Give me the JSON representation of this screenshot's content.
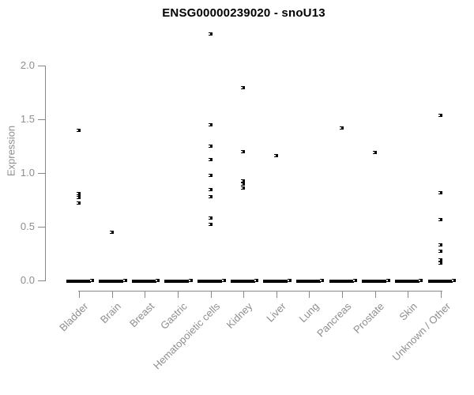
{
  "chart_data": {
    "type": "scatter",
    "title": "ENSG00000239020 - snoU13",
    "ylabel": "Expression",
    "xlabel": "",
    "ylim": [
      0,
      2.35
    ],
    "yticks": [
      "0.0",
      "0.5",
      "1.0",
      "1.5",
      "2.0"
    ],
    "ytick_values": [
      0.0,
      0.5,
      1.0,
      1.5,
      2.0
    ],
    "grid": false,
    "legend_position": "none",
    "marker_style": "small-black-open-square",
    "categories": [
      "Bladder",
      "Brain",
      "Breast",
      "Gastric",
      "Hematopoietic cells",
      "Kidney",
      "Liver",
      "Lung",
      "Pancreas",
      "Prostate",
      "Skin",
      "Unknown / Other"
    ],
    "series": [
      {
        "name": "Bladder",
        "values": [
          1.4,
          0.81,
          0.79,
          0.77,
          0.72
        ],
        "zero_cluster": true
      },
      {
        "name": "Brain",
        "values": [
          0.45
        ],
        "zero_cluster": true
      },
      {
        "name": "Breast",
        "values": [],
        "zero_cluster": true
      },
      {
        "name": "Gastric",
        "values": [],
        "zero_cluster": true
      },
      {
        "name": "Hematopoietic cells",
        "values": [
          2.3,
          1.45,
          1.25,
          1.13,
          0.98,
          0.85,
          0.78,
          0.58,
          0.52
        ],
        "zero_cluster": true
      },
      {
        "name": "Kidney",
        "values": [
          1.8,
          1.2,
          0.93,
          0.9,
          0.86
        ],
        "zero_cluster": true
      },
      {
        "name": "Liver",
        "values": [
          1.16
        ],
        "zero_cluster": true
      },
      {
        "name": "Lung",
        "values": [],
        "zero_cluster": true
      },
      {
        "name": "Pancreas",
        "values": [
          1.42
        ],
        "zero_cluster": true
      },
      {
        "name": "Prostate",
        "values": [
          1.19
        ],
        "zero_cluster": true
      },
      {
        "name": "Skin",
        "values": [],
        "zero_cluster": true
      },
      {
        "name": "Unknown / Other",
        "values": [
          1.54,
          0.82,
          0.57,
          0.33,
          0.27,
          0.19,
          0.16
        ],
        "zero_cluster": true
      }
    ],
    "colors": {
      "marker": "#000000",
      "axis": "#888888",
      "label": "#8e8e8e",
      "title": "#000000",
      "background": "#ffffff"
    }
  }
}
